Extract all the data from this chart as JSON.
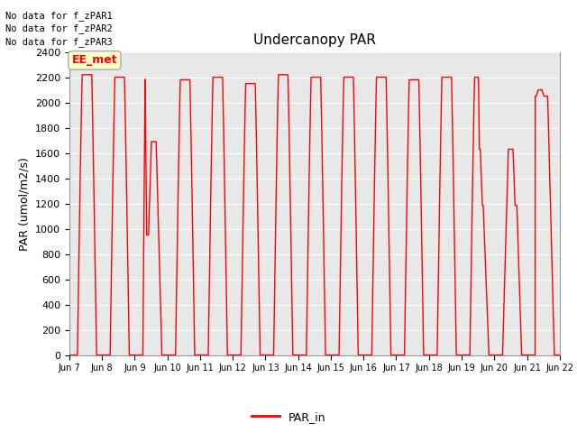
{
  "title": "Undercanopy PAR",
  "ylabel": "PAR (umol/m2/s)",
  "ylim": [
    0,
    2400
  ],
  "yticks": [
    0,
    200,
    400,
    600,
    800,
    1000,
    1200,
    1400,
    1600,
    1800,
    2000,
    2200,
    2400
  ],
  "line_color": "#FF0000",
  "line_width": 1.0,
  "bg_color": "#E8E8E8",
  "legend_label": "PAR_in",
  "no_data_texts": [
    "No data for f_zPAR1",
    "No data for f_zPAR2",
    "No data for f_zPAR3"
  ],
  "ee_met_label": "EE_met",
  "num_days": 16,
  "xtick_labels": [
    "Jun 7",
    "Jun 8",
    "Jun 9",
    "Jun 10",
    "Jun 11",
    "Jun 12",
    "Jun 13",
    "Jun 14",
    "Jun 15",
    "Jun 16",
    "Jun 17",
    "Jun 18",
    "Jun 19",
    "Jun 20",
    "Jun 21",
    "Jun 22"
  ],
  "figsize": [
    6.4,
    4.8
  ],
  "dpi": 100,
  "title_fontsize": 11,
  "axis_fontsize": 9,
  "tick_fontsize": 8
}
